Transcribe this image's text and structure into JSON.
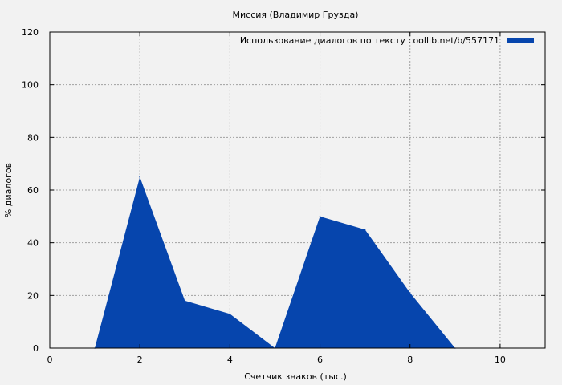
{
  "chart_data": {
    "type": "area",
    "title": "Миссия (Владимир Груздa)",
    "xlabel": "Счетчик знаков (тыс.)",
    "ylabel": "% диалогов",
    "xlim": [
      0,
      11
    ],
    "ylim": [
      0,
      120
    ],
    "x_ticks": [
      "0",
      "2",
      "4",
      "6",
      "8",
      "10"
    ],
    "y_ticks": [
      "0",
      "20",
      "40",
      "60",
      "80",
      "100",
      "120"
    ],
    "grid": true,
    "legend_position": "top-right",
    "series": [
      {
        "name": "Использование диалогов по тексту  coollib.net/b/557171",
        "color": "#0645ad",
        "x": [
          1,
          2,
          3,
          4,
          5,
          6,
          7,
          8,
          9
        ],
        "y": [
          0,
          65,
          18,
          13,
          0,
          50,
          45,
          21,
          0
        ]
      }
    ]
  }
}
